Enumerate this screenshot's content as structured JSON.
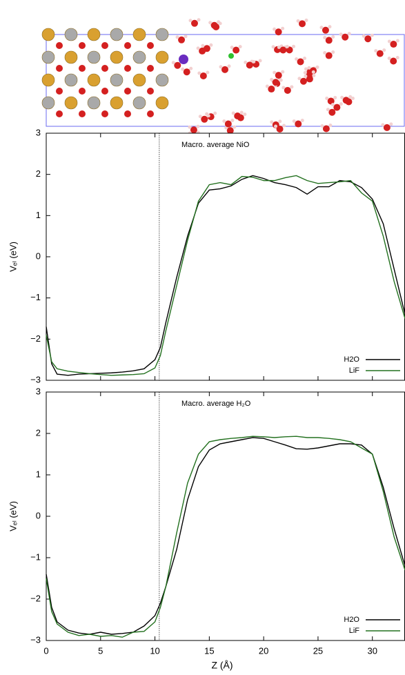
{
  "chart_data": [
    {
      "type": "line",
      "title": "Macro. average NiO",
      "ylabel": "Vₑₗ (eV)",
      "x": [
        0,
        0.5,
        1,
        2,
        3,
        4,
        5,
        6,
        7,
        8,
        9,
        10,
        10.5,
        11,
        12,
        13,
        14,
        15,
        16,
        17,
        18,
        19,
        20,
        21,
        22,
        23,
        24,
        25,
        26,
        27,
        28,
        29,
        30,
        31,
        32,
        33
      ],
      "series": [
        {
          "name": "H2O",
          "color": "#000000",
          "values": [
            -1.7,
            -2.6,
            -2.85,
            -2.88,
            -2.85,
            -2.84,
            -2.83,
            -2.82,
            -2.8,
            -2.77,
            -2.72,
            -2.5,
            -2.2,
            -1.6,
            -0.5,
            0.5,
            1.3,
            1.62,
            1.65,
            1.72,
            1.88,
            1.97,
            1.9,
            1.8,
            1.75,
            1.68,
            1.52,
            1.7,
            1.7,
            1.85,
            1.82,
            1.68,
            1.4,
            0.8,
            -0.3,
            -1.4
          ]
        },
        {
          "name": "LiF",
          "color": "#22701e",
          "values": [
            -1.9,
            -2.55,
            -2.72,
            -2.78,
            -2.81,
            -2.84,
            -2.86,
            -2.88,
            -2.87,
            -2.86,
            -2.84,
            -2.7,
            -2.4,
            -1.8,
            -0.7,
            0.4,
            1.35,
            1.75,
            1.8,
            1.75,
            1.95,
            1.93,
            1.85,
            1.85,
            1.92,
            1.97,
            1.85,
            1.78,
            1.8,
            1.82,
            1.85,
            1.55,
            1.35,
            0.5,
            -0.6,
            -1.5
          ]
        }
      ],
      "xlim": [
        0,
        33
      ],
      "ylim": [
        -3,
        3
      ],
      "xticks": [
        0,
        5,
        10,
        15,
        20,
        25,
        30
      ],
      "show_xtick_labels": false,
      "yticks": [
        3,
        2,
        1,
        0,
        {
          "value": -1,
          "label": "−1"
        },
        {
          "value": -2,
          "label": "−2"
        },
        {
          "value": -3,
          "label": "−3"
        }
      ],
      "vline": 10.4,
      "legend": "lower right"
    },
    {
      "type": "line",
      "title": "Macro. average H₂O",
      "ylabel": "Vₑₗ (eV)",
      "xlabel": "Z (Å)",
      "x": [
        0,
        0.5,
        1,
        2,
        3,
        4,
        5,
        6,
        7,
        8,
        9,
        10,
        10.5,
        11,
        12,
        13,
        14,
        15,
        16,
        17,
        18,
        19,
        20,
        21,
        22,
        23,
        24,
        25,
        26,
        27,
        28,
        29,
        30,
        31,
        32,
        33
      ],
      "series": [
        {
          "name": "H2O",
          "color": "#000000",
          "values": [
            -1.4,
            -2.2,
            -2.55,
            -2.75,
            -2.82,
            -2.85,
            -2.8,
            -2.85,
            -2.83,
            -2.8,
            -2.65,
            -2.4,
            -2.1,
            -1.7,
            -0.8,
            0.4,
            1.2,
            1.6,
            1.75,
            1.8,
            1.85,
            1.9,
            1.88,
            1.8,
            1.72,
            1.63,
            1.62,
            1.65,
            1.7,
            1.75,
            1.75,
            1.72,
            1.5,
            0.7,
            -0.3,
            -1.2
          ]
        },
        {
          "name": "LiF",
          "color": "#22701e",
          "values": [
            -1.5,
            -2.3,
            -2.6,
            -2.8,
            -2.88,
            -2.85,
            -2.9,
            -2.88,
            -2.92,
            -2.8,
            -2.78,
            -2.55,
            -2.2,
            -1.7,
            -0.4,
            0.8,
            1.5,
            1.8,
            1.85,
            1.88,
            1.9,
            1.93,
            1.92,
            1.9,
            1.92,
            1.93,
            1.9,
            1.9,
            1.88,
            1.85,
            1.8,
            1.65,
            1.5,
            0.6,
            -0.5,
            -1.3
          ]
        }
      ],
      "xlim": [
        0,
        33
      ],
      "ylim": [
        -3,
        3
      ],
      "xticks": [
        0,
        5,
        10,
        15,
        20,
        25,
        30
      ],
      "show_xtick_labels": true,
      "yticks": [
        3,
        2,
        1,
        0,
        {
          "value": -1,
          "label": "−1"
        },
        {
          "value": -2,
          "label": "−2"
        },
        {
          "value": -3,
          "label": "−3"
        }
      ],
      "vline": 10.4,
      "legend": "lower right"
    }
  ]
}
